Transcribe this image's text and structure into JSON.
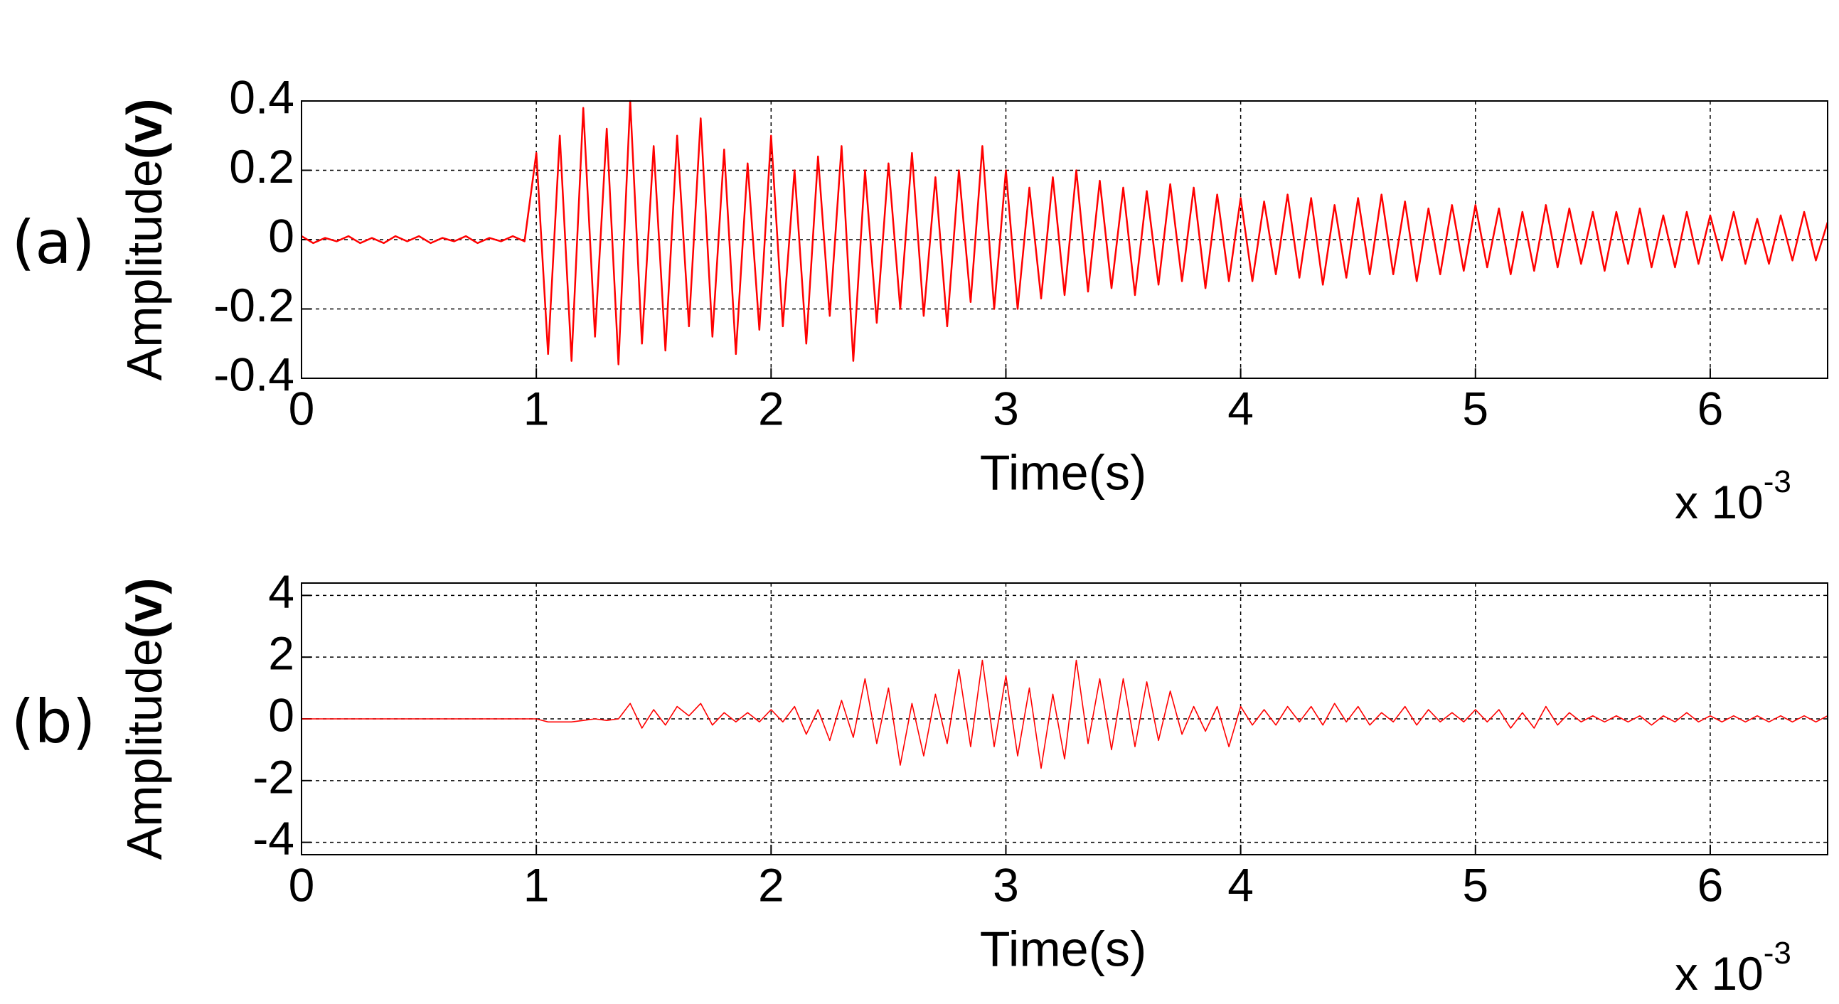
{
  "chart_data": [
    {
      "type": "line",
      "panel_label": "(a)",
      "ylabel": "Amplitude",
      "ylabel_unit": "(v)",
      "xlabel": "Time(s)",
      "x_scale_label": "x 10",
      "x_scale_exponent": "-3",
      "xlim": [
        0,
        6.5
      ],
      "xticks": [
        0,
        1,
        2,
        3,
        4,
        5,
        6
      ],
      "ylim": [
        -0.4,
        0.4
      ],
      "yticks": [
        -0.4,
        -0.2,
        0,
        0.2,
        0.4
      ],
      "grid": true,
      "x": [
        0,
        0.05,
        0.1,
        0.15,
        0.2,
        0.25,
        0.3,
        0.35,
        0.4,
        0.45,
        0.5,
        0.55,
        0.6,
        0.65,
        0.7,
        0.75,
        0.8,
        0.85,
        0.9,
        0.95,
        1,
        1.05,
        1.1,
        1.15,
        1.2,
        1.25,
        1.3,
        1.35,
        1.4,
        1.45,
        1.5,
        1.55,
        1.6,
        1.65,
        1.7,
        1.75,
        1.8,
        1.85,
        1.9,
        1.95,
        2,
        2.05,
        2.1,
        2.15,
        2.2,
        2.25,
        2.3,
        2.35,
        2.4,
        2.45,
        2.5,
        2.55,
        2.6,
        2.65,
        2.7,
        2.75,
        2.8,
        2.85,
        2.9,
        2.95,
        3,
        3.05,
        3.1,
        3.15,
        3.2,
        3.25,
        3.3,
        3.35,
        3.4,
        3.45,
        3.5,
        3.55,
        3.6,
        3.65,
        3.7,
        3.75,
        3.8,
        3.85,
        3.9,
        3.95,
        4,
        4.05,
        4.1,
        4.15,
        4.2,
        4.25,
        4.3,
        4.35,
        4.4,
        4.45,
        4.5,
        4.55,
        4.6,
        4.65,
        4.7,
        4.75,
        4.8,
        4.85,
        4.9,
        4.95,
        5,
        5.05,
        5.1,
        5.15,
        5.2,
        5.25,
        5.3,
        5.35,
        5.4,
        5.45,
        5.5,
        5.55,
        5.6,
        5.65,
        5.7,
        5.75,
        5.8,
        5.85,
        5.9,
        5.95,
        6,
        6.05,
        6.1,
        6.15,
        6.2,
        6.25,
        6.3,
        6.35,
        6.4,
        6.45,
        6.5
      ],
      "series": [
        {
          "color": "#ff0000",
          "values": [
            0.01,
            -0.01,
            0.005,
            -0.005,
            0.01,
            -0.01,
            0.005,
            -0.01,
            0.01,
            -0.005,
            0.01,
            -0.01,
            0.005,
            -0.005,
            0.01,
            -0.01,
            0.005,
            -0.005,
            0.01,
            -0.005,
            0.25,
            -0.33,
            0.3,
            -0.35,
            0.38,
            -0.28,
            0.32,
            -0.36,
            0.4,
            -0.3,
            0.27,
            -0.32,
            0.3,
            -0.25,
            0.35,
            -0.28,
            0.26,
            -0.33,
            0.22,
            -0.26,
            0.3,
            -0.25,
            0.2,
            -0.3,
            0.24,
            -0.22,
            0.27,
            -0.35,
            0.2,
            -0.24,
            0.22,
            -0.2,
            0.25,
            -0.22,
            0.18,
            -0.25,
            0.2,
            -0.18,
            0.27,
            -0.2,
            0.2,
            -0.2,
            0.15,
            -0.17,
            0.18,
            -0.16,
            0.2,
            -0.15,
            0.17,
            -0.14,
            0.15,
            -0.16,
            0.14,
            -0.13,
            0.16,
            -0.12,
            0.15,
            -0.14,
            0.13,
            -0.12,
            0.12,
            -0.12,
            0.11,
            -0.1,
            0.13,
            -0.11,
            0.12,
            -0.13,
            0.1,
            -0.11,
            0.12,
            -0.1,
            0.13,
            -0.1,
            0.11,
            -0.12,
            0.09,
            -0.1,
            0.1,
            -0.09,
            0.1,
            -0.08,
            0.09,
            -0.1,
            0.08,
            -0.09,
            0.1,
            -0.08,
            0.09,
            -0.07,
            0.08,
            -0.09,
            0.08,
            -0.07,
            0.09,
            -0.08,
            0.07,
            -0.08,
            0.08,
            -0.07,
            0.07,
            -0.06,
            0.08,
            -0.07,
            0.06,
            -0.07,
            0.07,
            -0.06,
            0.08,
            -0.06,
            0.05
          ]
        }
      ]
    },
    {
      "type": "line",
      "panel_label": "(b)",
      "ylabel": "Amplitude",
      "ylabel_unit": "(v)",
      "xlabel": "Time(s)",
      "x_scale_label": "x 10",
      "x_scale_exponent": "-3",
      "xlim": [
        0,
        6.5
      ],
      "xticks": [
        0,
        1,
        2,
        3,
        4,
        5,
        6
      ],
      "ylim": [
        -4.4,
        4.4
      ],
      "yticks": [
        -4,
        -2,
        0,
        2,
        4
      ],
      "grid": true,
      "x": [
        0,
        0.05,
        0.1,
        0.15,
        0.2,
        0.25,
        0.3,
        0.35,
        0.4,
        0.45,
        0.5,
        0.55,
        0.6,
        0.65,
        0.7,
        0.75,
        0.8,
        0.85,
        0.9,
        0.95,
        1,
        1.05,
        1.1,
        1.15,
        1.2,
        1.25,
        1.3,
        1.35,
        1.4,
        1.45,
        1.5,
        1.55,
        1.6,
        1.65,
        1.7,
        1.75,
        1.8,
        1.85,
        1.9,
        1.95,
        2,
        2.05,
        2.1,
        2.15,
        2.2,
        2.25,
        2.3,
        2.35,
        2.4,
        2.45,
        2.5,
        2.55,
        2.6,
        2.65,
        2.7,
        2.75,
        2.8,
        2.85,
        2.9,
        2.95,
        3,
        3.05,
        3.1,
        3.15,
        3.2,
        3.25,
        3.3,
        3.35,
        3.4,
        3.45,
        3.5,
        3.55,
        3.6,
        3.65,
        3.7,
        3.75,
        3.8,
        3.85,
        3.9,
        3.95,
        4,
        4.05,
        4.1,
        4.15,
        4.2,
        4.25,
        4.3,
        4.35,
        4.4,
        4.45,
        4.5,
        4.55,
        4.6,
        4.65,
        4.7,
        4.75,
        4.8,
        4.85,
        4.9,
        4.95,
        5,
        5.05,
        5.1,
        5.15,
        5.2,
        5.25,
        5.3,
        5.35,
        5.4,
        5.45,
        5.5,
        5.55,
        5.6,
        5.65,
        5.7,
        5.75,
        5.8,
        5.85,
        5.9,
        5.95,
        6,
        6.05,
        6.1,
        6.15,
        6.2,
        6.25,
        6.3,
        6.35,
        6.4,
        6.45,
        6.5
      ],
      "series": [
        {
          "color": "#ff0000",
          "values": [
            0,
            0,
            0,
            0,
            0,
            0,
            0,
            0,
            0,
            0,
            0,
            0,
            0,
            0,
            0,
            0,
            0,
            0,
            0,
            0,
            0,
            -0.1,
            -0.1,
            -0.1,
            -0.05,
            0,
            -0.05,
            0,
            0.5,
            -0.3,
            0.3,
            -0.2,
            0.4,
            0.1,
            0.5,
            -0.2,
            0.2,
            -0.1,
            0.2,
            -0.1,
            0.3,
            -0.1,
            0.4,
            -0.5,
            0.3,
            -0.7,
            0.6,
            -0.6,
            1.3,
            -0.8,
            1.0,
            -1.5,
            0.5,
            -1.2,
            0.8,
            -0.8,
            1.6,
            -0.9,
            1.9,
            -0.9,
            1.4,
            -1.2,
            1.0,
            -1.6,
            0.8,
            -1.3,
            1.9,
            -0.8,
            1.3,
            -1.0,
            1.3,
            -0.9,
            1.2,
            -0.7,
            0.9,
            -0.5,
            0.4,
            -0.4,
            0.4,
            -0.9,
            0.4,
            -0.2,
            0.3,
            -0.2,
            0.4,
            -0.1,
            0.4,
            -0.2,
            0.5,
            -0.1,
            0.4,
            -0.2,
            0.2,
            -0.1,
            0.4,
            -0.2,
            0.3,
            -0.1,
            0.2,
            -0.1,
            0.3,
            -0.1,
            0.3,
            -0.3,
            0.2,
            -0.3,
            0.4,
            -0.2,
            0.2,
            -0.1,
            0.1,
            -0.1,
            0.1,
            -0.1,
            0.1,
            -0.2,
            0.1,
            -0.1,
            0.2,
            -0.1,
            0.1,
            -0.1,
            0.1,
            -0.1,
            0.1,
            -0.1,
            0.1,
            -0.1,
            0.1,
            -0.1,
            0.1
          ]
        }
      ]
    }
  ]
}
